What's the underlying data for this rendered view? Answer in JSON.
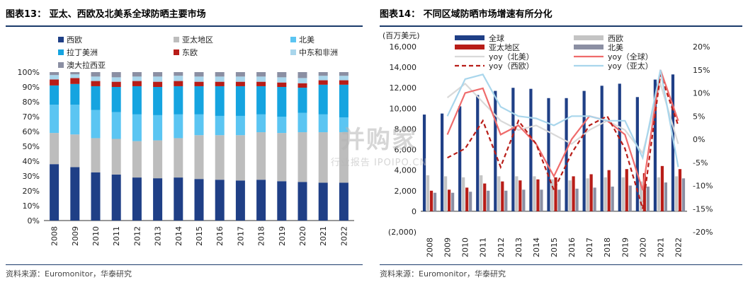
{
  "left": {
    "title": "图表13： 亚太、西欧及北美系全球防晒主要市场",
    "source": "资料来源：Euromonitor，华泰研究"
  },
  "right": {
    "title": "图表14： 不同区域防晒市场增速有所分化",
    "source": "资料来源：Euromonitor，华泰研究"
  },
  "watermark": {
    "main": "并购家",
    "sub": "行业报告 IPOIPO.CN"
  },
  "chart_data": [
    {
      "type": "bar",
      "stacked": true,
      "categories": [
        "2008",
        "2009",
        "2010",
        "2011",
        "2012",
        "2013",
        "2014",
        "2015",
        "2016",
        "2017",
        "2018",
        "2019",
        "2020",
        "2021",
        "2022"
      ],
      "ylim": [
        0,
        100
      ],
      "ytick_labels": [
        "0%",
        "10%",
        "20%",
        "30%",
        "40%",
        "50%",
        "60%",
        "70%",
        "80%",
        "90%",
        "100%"
      ],
      "legend_position": "top",
      "grid": false,
      "series": [
        {
          "name": "西欧",
          "color": "#1f3f86",
          "values": [
            38,
            36,
            32.5,
            31,
            29,
            28.5,
            29,
            28,
            27.5,
            27,
            27.5,
            26.5,
            26,
            25.5,
            25.5
          ]
        },
        {
          "name": "亚太地区",
          "color": "#bdbdbd",
          "values": [
            21,
            22,
            23,
            24,
            24.5,
            25.5,
            26.5,
            29.5,
            30,
            30.5,
            32,
            32.5,
            33.5,
            34,
            34
          ]
        },
        {
          "name": "北美",
          "color": "#5bc5f2",
          "values": [
            19,
            20,
            19,
            18,
            18,
            17,
            16,
            14,
            13,
            13,
            12,
            11,
            13,
            12,
            10
          ]
        },
        {
          "name": "拉丁美洲",
          "color": "#15a4e0",
          "values": [
            13,
            14,
            16,
            17,
            19,
            19,
            19,
            19,
            20,
            20,
            19,
            20,
            17,
            20,
            22
          ]
        },
        {
          "name": "东欧",
          "color": "#b81d18",
          "values": [
            4,
            4,
            3.5,
            3.5,
            3.5,
            3.5,
            3.5,
            3,
            3,
            3,
            3,
            3,
            3,
            3,
            3
          ]
        },
        {
          "name": "中东和非洲",
          "color": "#a9d6ec",
          "values": [
            3,
            2.5,
            3,
            3,
            3,
            3.5,
            3.5,
            3.5,
            3.5,
            3.5,
            3.5,
            3.5,
            3.5,
            3,
            3
          ]
        },
        {
          "name": "澳大拉西亚",
          "color": "#8b8fa3",
          "values": [
            2,
            1.5,
            3,
            3.5,
            3,
            3,
            2.5,
            3,
            3,
            3,
            3,
            3.5,
            4,
            2.5,
            2.5
          ]
        }
      ]
    },
    {
      "type": "bar+line",
      "categories": [
        "2008",
        "2009",
        "2010",
        "2011",
        "2012",
        "2013",
        "2014",
        "2015",
        "2016",
        "2017",
        "2018",
        "2019",
        "2020",
        "2021",
        "2022"
      ],
      "ylabel": "(百万美元)",
      "ylim": [
        -2000,
        16000
      ],
      "ytick_labels": [
        "(2,000)",
        "0",
        "2,000",
        "4,000",
        "6,000",
        "8,000",
        "10,000",
        "12,000",
        "14,000",
        "16,000"
      ],
      "y2lim": [
        -20,
        20
      ],
      "y2tick_labels": [
        "-20%",
        "-15%",
        "-10%",
        "-5%",
        "0%",
        "5%",
        "10%",
        "15%",
        "20%"
      ],
      "bar_series": [
        {
          "name": "全球",
          "color": "#1f3f86",
          "values": [
            9400,
            9500,
            10200,
            11300,
            11700,
            12000,
            11900,
            11000,
            11000,
            11700,
            12200,
            12400,
            11100,
            12800,
            13300
          ]
        },
        {
          "name": "西欧",
          "color": "#c4c4c4",
          "values": [
            3500,
            3400,
            3300,
            3500,
            3400,
            3400,
            3400,
            3100,
            3000,
            3200,
            3300,
            3300,
            2900,
            3300,
            3400
          ]
        },
        {
          "name": "亚太地区",
          "color": "#b81d18",
          "values": [
            2000,
            2100,
            2300,
            2700,
            2900,
            3000,
            3100,
            3300,
            3400,
            3600,
            4000,
            4100,
            3700,
            4400,
            4100
          ]
        },
        {
          "name": "北美",
          "color": "#8b8fa3",
          "values": [
            1800,
            1800,
            1900,
            2000,
            2000,
            2100,
            2100,
            2100,
            2200,
            2300,
            2400,
            2500,
            2400,
            2800,
            3200
          ]
        }
      ],
      "line_series": [
        {
          "name": "yoy（北美）",
          "color": "#d9d9d9",
          "dashed": false,
          "values": [
            null,
            9,
            12,
            8,
            4,
            2,
            3,
            1,
            -1,
            2,
            4,
            2,
            -3,
            12,
            -1
          ]
        },
        {
          "name": "yoy（全球）",
          "color": "#ef6b6b",
          "dashed": false,
          "values": [
            null,
            1,
            10,
            11,
            1,
            3,
            -1,
            -8,
            0,
            5,
            4,
            1,
            -11,
            15,
            4
          ]
        },
        {
          "name": "yoy（西欧）",
          "color": "#b81d18",
          "dashed": true,
          "values": [
            null,
            -4,
            -2,
            4,
            -6,
            4,
            -1,
            -11,
            -3,
            3,
            5,
            -2,
            -15,
            14,
            3
          ]
        },
        {
          "name": "yoy（亚太）",
          "color": "#a9d6ec",
          "dashed": false,
          "values": [
            null,
            5,
            13,
            14,
            7,
            5,
            4.5,
            3,
            5,
            5,
            4,
            4,
            -4,
            15,
            -6
          ]
        }
      ]
    }
  ]
}
